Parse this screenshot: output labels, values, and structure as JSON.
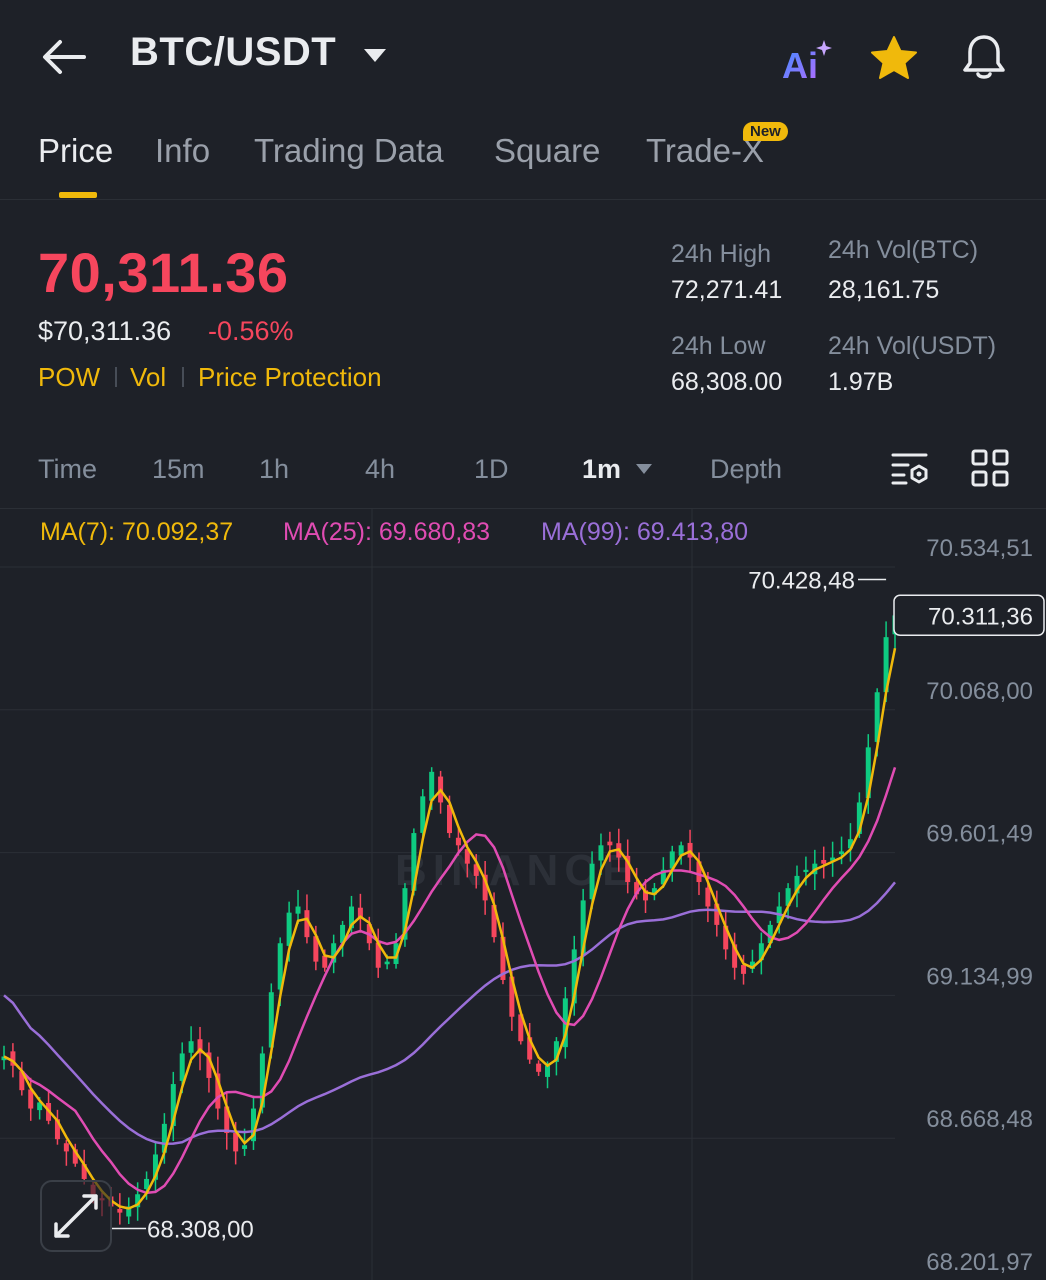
{
  "header": {
    "pair": "BTC/USDT",
    "icons": {
      "back": "back-arrow-icon",
      "dropdown": "caret-down-icon",
      "ai": "ai-assistant-icon",
      "favorite": "star-icon",
      "alerts": "bell-icon"
    }
  },
  "tabs": [
    {
      "label": "Price",
      "active": true
    },
    {
      "label": "Info"
    },
    {
      "label": "Trading Data"
    },
    {
      "label": "Square"
    },
    {
      "label": "Trade-X",
      "badge": "New"
    }
  ],
  "price": {
    "last": "70,311.36",
    "usd": "$70,311.36",
    "change_pct": "-0.56%",
    "tags": [
      "POW",
      "Vol",
      "Price Protection"
    ]
  },
  "stats": {
    "high_label": "24h High",
    "high_value": "72,271.41",
    "low_label": "24h Low",
    "low_value": "68,308.00",
    "vol_btc_label": "24h Vol(BTC)",
    "vol_btc_value": "28,161.75",
    "vol_usdt_label": "24h Vol(USDT)",
    "vol_usdt_value": "1.97B"
  },
  "intervals": {
    "items": [
      "Time",
      "15m",
      "1h",
      "4h",
      "1D",
      "1m",
      "Depth"
    ],
    "active": "1m"
  },
  "ma_legend": {
    "ma7": "MA(7): 70.092,37",
    "ma25": "MA(25): 69.680,83",
    "ma99": "MA(99): 69.413,80"
  },
  "colors": {
    "up": "#0ecb81",
    "down": "#f6465d",
    "accent": "#f0b90b",
    "ma7": "#f0b90b",
    "ma25": "#e04cb3",
    "ma99": "#9a6fd8"
  },
  "chart_data": {
    "type": "candlestick",
    "symbol": "BTC/USDT",
    "interval": "1m",
    "y_ticks": [
      "70.534,51",
      "70.068,00",
      "69.601,49",
      "69.134,99",
      "68.668,48",
      "68.201,97"
    ],
    "y_tick_values": [
      70534.51,
      70068.0,
      69601.49,
      69134.99,
      68668.48,
      68201.97
    ],
    "ylim": [
      68201.97,
      70534.51
    ],
    "current_price": {
      "label": "70.311,36",
      "value": 70311.36
    },
    "visible_high": {
      "label": "70.428,48",
      "value": 70428.48
    },
    "visible_low": {
      "label": "68.308,00",
      "value": 68308.0
    },
    "watermark": "BINANCE",
    "close": [
      68870,
      68840,
      68760,
      68700,
      68720,
      68660,
      68600,
      68560,
      68520,
      68470,
      68420,
      68400,
      68380,
      68360,
      68380,
      68420,
      68470,
      68550,
      68650,
      68780,
      68880,
      68920,
      68880,
      68800,
      68700,
      68620,
      68560,
      68580,
      68700,
      68880,
      69080,
      69240,
      69340,
      69360,
      69260,
      69180,
      69160,
      69240,
      69300,
      69360,
      69320,
      69240,
      69160,
      69180,
      69240,
      69420,
      69600,
      69720,
      69800,
      69700,
      69600,
      69560,
      69500,
      69460,
      69380,
      69260,
      69120,
      69000,
      68920,
      68860,
      68820,
      68840,
      68920,
      69060,
      69220,
      69380,
      69500,
      69560,
      69560,
      69520,
      69440,
      69400,
      69380,
      69420,
      69480,
      69540,
      69560,
      69520,
      69440,
      69360,
      69300,
      69220,
      69160,
      69140,
      69180,
      69240,
      69300,
      69360,
      69420,
      69460,
      69480,
      69500,
      69500,
      69520,
      69540,
      69580,
      69700,
      69880,
      70060,
      70240,
      70311
    ]
  }
}
